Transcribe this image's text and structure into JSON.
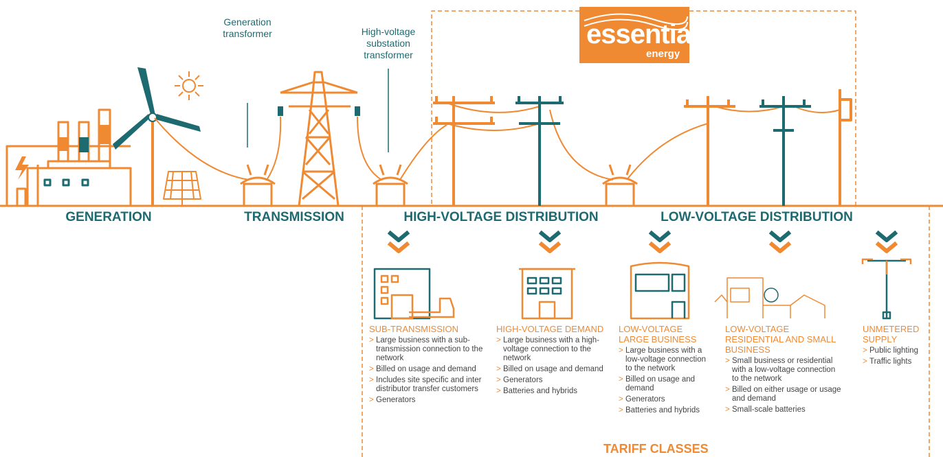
{
  "logo": {
    "name": "essential",
    "tagline": "energy"
  },
  "callouts": [
    {
      "label": "Generation transformer"
    },
    {
      "label": "High-voltage substation transformer"
    }
  ],
  "stages": [
    "GENERATION",
    "TRANSMISSION",
    "HIGH-VOLTAGE DISTRIBUTION",
    "LOW-VOLTAGE DISTRIBUTION"
  ],
  "tariff_classes": {
    "title": "TARIFF CLASSES",
    "bullet_marker": ">",
    "classes": [
      {
        "name": "SUB-TRANSMISSION",
        "bullets": [
          "Large business with a sub-transmission connection to the network",
          "Billed on usage and demand",
          "Includes site specific and inter distributor transfer customers",
          "Generators"
        ]
      },
      {
        "name": "HIGH-VOLTAGE DEMAND",
        "bullets": [
          "Large business with a high-voltage connection to the network",
          "Billed on usage and demand",
          "Generators",
          "Batteries and hybrids"
        ]
      },
      {
        "name": "LOW-VOLTAGE LARGE BUSINESS",
        "bullets": [
          "Large business with a low-voltage connection to the network",
          "Billed on usage and demand",
          "Generators",
          "Batteries and hybrids"
        ]
      },
      {
        "name": "LOW-VOLTAGE RESIDENTIAL AND SMALL BUSINESS",
        "bullets": [
          "Small business or residential with a low-voltage connection to the network",
          "Billed on either usage or usage and demand",
          "Small-scale batteries"
        ]
      },
      {
        "name": "UNMETERED SUPPLY",
        "bullets": [
          "Public lighting",
          "Traffic lights"
        ]
      }
    ]
  }
}
